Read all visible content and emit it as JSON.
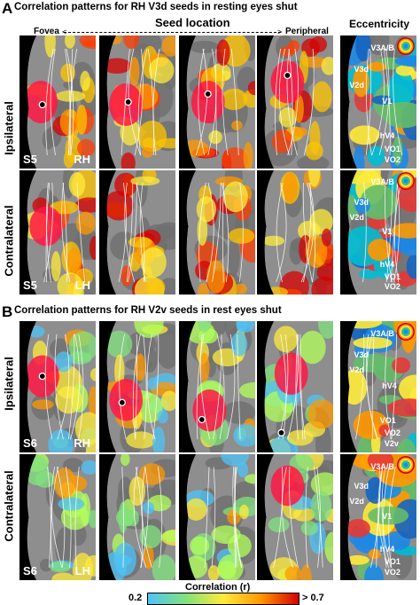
{
  "panelA": {
    "letter": "A",
    "title": "Correlation patterns for RH V3d seeds in resting eyes shut",
    "seed_location": "Seed location",
    "fovea": "Fovea",
    "peripheral": "Peripheral",
    "eccentricity": "Eccentricity",
    "row1": "Ipsilateral",
    "row2": "Contralateral",
    "subject": "S5",
    "hemi_row1": "RH",
    "hemi_row2": "LH",
    "ecc_labels_top": [
      "V3A/B",
      "V3d",
      "V2d",
      "V1",
      "hV4",
      "VO1",
      "VO2"
    ],
    "ecc_labels_bottom": [
      "V3A/B",
      "V3d",
      "V2d",
      "V1",
      "hV4",
      "VO1",
      "VO2"
    ]
  },
  "panelB": {
    "letter": "B",
    "title": "Correlation patterns for RH V2v seeds in rest eyes shut",
    "row1": "Ipsilateral",
    "row2": "Contralateral",
    "subject": "S6",
    "hemi_row1": "RH",
    "hemi_row2": "LH",
    "ecc_labels_top": [
      "V3A/B",
      "V3d",
      "V2d",
      "hV4",
      "VO1",
      "VO2",
      "V2v"
    ],
    "ecc_labels_bottom": [
      "V3A/B",
      "V3d",
      "V2d",
      "V1",
      "hV4",
      "VO1",
      "VO2"
    ]
  },
  "colorbar": {
    "min_label": "0.2",
    "max_label": "> 0.7",
    "title": "Correlation (r)",
    "min": 0.2,
    "max": 0.7,
    "colors": [
      "#4fc3f7",
      "#80e27e",
      "#ffeb3b",
      "#ff9800",
      "#d50000"
    ]
  }
}
